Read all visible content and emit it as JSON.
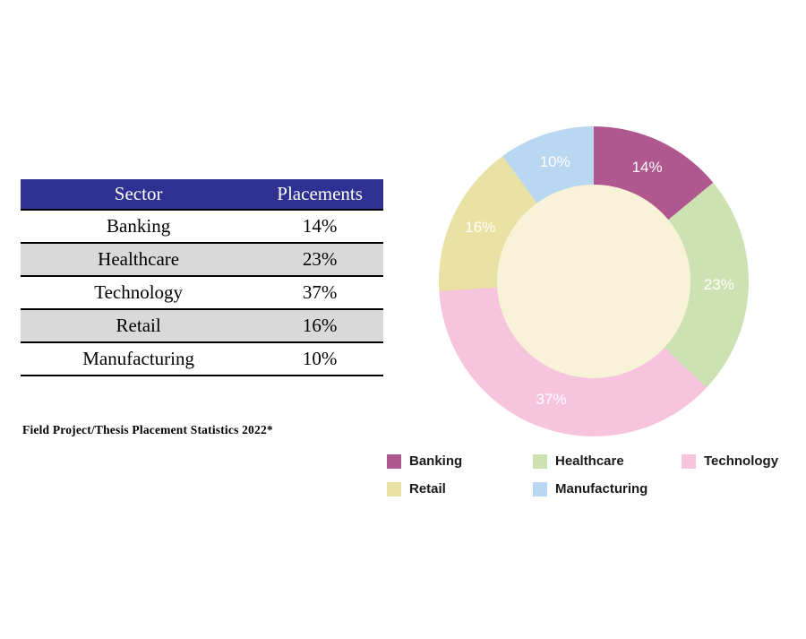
{
  "table": {
    "headers": [
      "Sector",
      "Placements"
    ],
    "rows": [
      {
        "sector": "Banking",
        "placements": "14%"
      },
      {
        "sector": "Healthcare",
        "placements": "23%"
      },
      {
        "sector": "Technology",
        "placements": "37%"
      },
      {
        "sector": "Retail",
        "placements": "16%"
      },
      {
        "sector": "Manufacturing",
        "placements": "10%"
      }
    ],
    "header_bg": "#2e3191",
    "header_text_color": "#ffffff",
    "alt_row_bg": "#d9d9d9"
  },
  "caption": "Field Project/Thesis Placement Statistics 2022*",
  "chart_data": {
    "type": "pie",
    "subtype": "donut",
    "title": "",
    "categories": [
      "Banking",
      "Healthcare",
      "Technology",
      "Retail",
      "Manufacturing"
    ],
    "values": [
      14,
      23,
      37,
      16,
      10
    ],
    "labels": [
      "14%",
      "23%",
      "37%",
      "16%",
      "10%"
    ],
    "colors": [
      "#b1578f",
      "#cde2b3",
      "#f7c4de",
      "#e9e2a4",
      "#b9d7f1"
    ],
    "hole_color": "#f7f2d8",
    "label_color": "#ffffff",
    "start_angle_deg": 0,
    "direction": "clockwise",
    "legend_position": "bottom"
  },
  "legend": {
    "items": [
      {
        "label": "Banking",
        "color": "#b1578f"
      },
      {
        "label": "Healthcare",
        "color": "#cde2b3"
      },
      {
        "label": "Technology",
        "color": "#f7c4de"
      },
      {
        "label": "Retail",
        "color": "#e9e2a4"
      },
      {
        "label": "Manufacturing",
        "color": "#b9d7f1"
      }
    ]
  }
}
